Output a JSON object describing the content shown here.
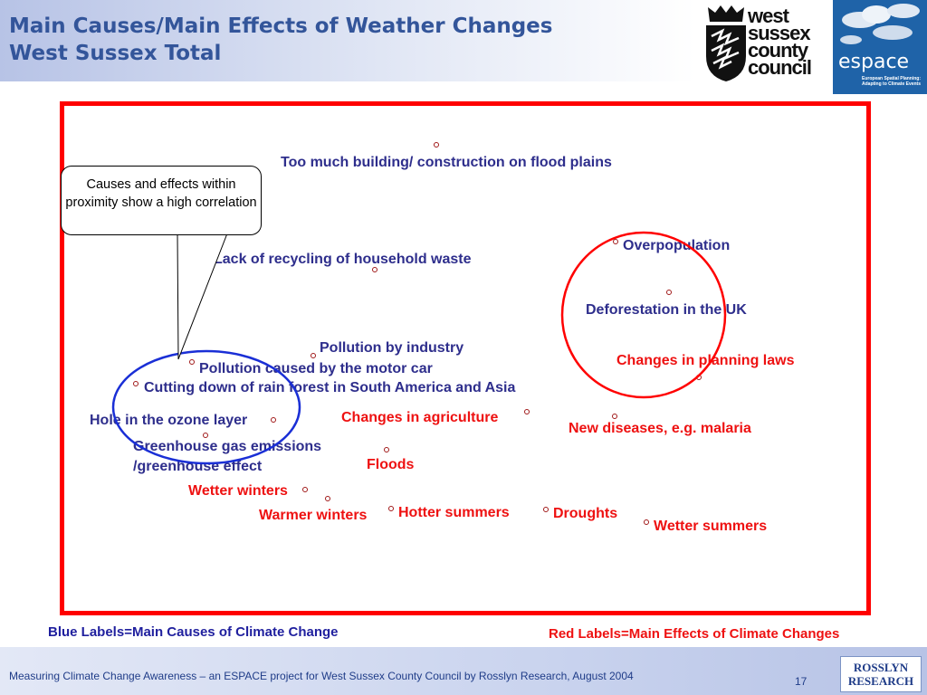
{
  "header": {
    "title_line1": "Main Causes/Main Effects of Weather Changes",
    "title_line2": "West Sussex Total",
    "wscc_logo_lines": [
      "west",
      "sussex",
      "county",
      "council"
    ],
    "espace_logo_word": "espace",
    "espace_logo_sub": "European Spatial Planning: Adapting to Climate Events"
  },
  "callout": {
    "text": "Causes and effects within proximity show a high correlation"
  },
  "causes": [
    "Too much building/ construction on flood plains",
    "Lack of recycling of household waste",
    "Overpopulation",
    "Deforestation in the UK",
    "Pollution by industry",
    "Pollution caused by the motor car",
    "Cutting down of rain forest in South America and Asia",
    "Hole in the ozone layer",
    "Greenhouse gas emissions",
    "/greenhouse effect"
  ],
  "effects": [
    "Changes in planning laws",
    "Changes in agriculture",
    "New diseases, e.g. malaria",
    "Floods",
    "Wetter winters",
    "Warmer winters",
    "Hotter summers",
    "Droughts",
    "Wetter summers"
  ],
  "legend": {
    "causes": "Blue Labels=Main Causes of Climate Change",
    "effects": "Red Labels=Main Effects of Climate Changes"
  },
  "footer": {
    "text": "Measuring Climate Change Awareness – an ESPACE project for West Sussex  County Council by Rosslyn Research, August 2004",
    "page": "17",
    "logo_lines": [
      "ROSSLYN",
      "RESEARCH"
    ]
  },
  "colors": {
    "cause": "#2e2e8c",
    "effect": "#ee1111",
    "frame": "#ff0000",
    "circle_blue": "#1a2fd6",
    "circle_red": "#ff0000",
    "title": "#33559a"
  }
}
